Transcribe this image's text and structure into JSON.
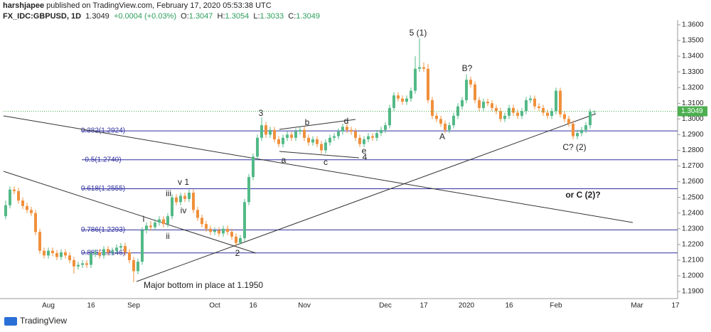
{
  "header": {
    "author": "harshjapee",
    "published": "published on TradingView.com, February 17, 2020 05:53:38 UTC",
    "symbol": "FX_IDC:GBPUSD, 1D",
    "last": "1.3049",
    "change": "+0.0004 (+0.03%)",
    "open_label": "O:",
    "open": "1.3047",
    "high_label": "H:",
    "high": "1.3054",
    "low_label": "L:",
    "low": "1.3033",
    "close_label": "C:",
    "close": "1.3049"
  },
  "footer": {
    "brand": "TradingView"
  },
  "chart_data": {
    "type": "candlestick",
    "categories": [
      null,
      null,
      null,
      null,
      null,
      null,
      null,
      null,
      null,
      null,
      "Aug",
      null,
      null,
      null,
      null,
      null,
      null,
      null,
      null,
      null,
      "16",
      null,
      null,
      null,
      null,
      null,
      null,
      null,
      null,
      null,
      "Sep",
      null,
      null,
      null,
      null,
      null,
      null,
      null,
      null,
      null,
      null,
      null,
      null,
      null,
      null,
      null,
      null,
      null,
      null,
      "Oct",
      null,
      null,
      null,
      null,
      null,
      null,
      null,
      null,
      "16",
      null,
      null,
      null,
      null,
      null,
      null,
      null,
      null,
      null,
      null,
      null,
      "Nov",
      null,
      null,
      null,
      null,
      null,
      null,
      null,
      null,
      null,
      null,
      null,
      null,
      null,
      null,
      null,
      null,
      null,
      null,
      "Dec",
      null,
      null,
      null,
      null,
      null,
      null,
      null,
      null,
      "17",
      null,
      null,
      null,
      null,
      null,
      null,
      null,
      null,
      null,
      "2020",
      null,
      null,
      null,
      null,
      null,
      null,
      null,
      null,
      null,
      "16",
      null,
      null,
      null,
      null,
      null,
      null,
      null,
      null,
      null,
      null,
      "Feb",
      null,
      null,
      null,
      null,
      null,
      null,
      null,
      null,
      null,
      null,
      null,
      null,
      null,
      null,
      null,
      null,
      null,
      null,
      "Mar",
      null,
      null,
      null,
      null,
      null,
      null,
      null,
      null,
      "17"
    ],
    "open": [
      1.238,
      1.245,
      1.255,
      1.254,
      1.248,
      1.2445,
      1.242,
      1.24,
      1.228,
      1.216,
      1.213,
      1.216,
      1.2145,
      1.212,
      1.215,
      1.213,
      1.21,
      1.206,
      1.207,
      1.208,
      1.207,
      1.214,
      1.215,
      1.213,
      1.217,
      1.215,
      1.216,
      1.218,
      1.219,
      1.215,
      1.21,
      1.203,
      1.209,
      1.229,
      1.232,
      1.231,
      1.234,
      1.236,
      1.233,
      1.238,
      1.25,
      1.247,
      1.251,
      1.249,
      1.253,
      1.242,
      1.237,
      1.233,
      1.23,
      1.228,
      1.229,
      1.227,
      1.23,
      1.228,
      1.225,
      1.221,
      1.224,
      1.247,
      1.263,
      1.276,
      1.288,
      1.296,
      1.29,
      1.293,
      1.287,
      1.284,
      1.288,
      1.29,
      1.288,
      1.292,
      1.293,
      1.288,
      1.285,
      1.287,
      1.284,
      1.28,
      1.285,
      1.288,
      1.289,
      1.292,
      1.295,
      1.293,
      1.292,
      1.288,
      1.284,
      1.287,
      1.289,
      1.288,
      1.291,
      1.293,
      1.296,
      1.307,
      1.315,
      1.313,
      1.311,
      1.313,
      1.318,
      1.332,
      1.333,
      1.332,
      1.312,
      1.302,
      1.3,
      1.297,
      1.293,
      1.296,
      1.302,
      1.308,
      1.312,
      1.325,
      1.322,
      1.312,
      1.307,
      1.311,
      1.31,
      1.307,
      1.305,
      1.3,
      1.302,
      1.307,
      1.304,
      1.302,
      1.305,
      1.312,
      1.313,
      1.308,
      1.307,
      1.304,
      1.302,
      1.305,
      1.318,
      1.303,
      1.3,
      1.297,
      1.289,
      1.291,
      1.293,
      1.296,
      1.3047,
      null,
      null,
      null,
      null,
      null,
      null,
      null,
      null,
      null,
      null,
      null,
      null,
      null,
      null,
      null,
      null,
      null,
      null,
      null
    ],
    "high": [
      1.248,
      1.257,
      1.257,
      1.256,
      1.25,
      1.2465,
      1.244,
      1.242,
      1.23,
      1.218,
      1.218,
      1.218,
      1.2165,
      1.217,
      1.217,
      1.215,
      1.212,
      1.209,
      1.21,
      1.21,
      1.216,
      1.217,
      1.217,
      1.219,
      1.219,
      1.218,
      1.22,
      1.221,
      1.221,
      1.217,
      1.212,
      1.211,
      1.231,
      1.234,
      1.235,
      1.236,
      1.238,
      1.238,
      1.24,
      1.252,
      1.252,
      1.253,
      1.253,
      1.255,
      1.255,
      1.244,
      1.239,
      1.235,
      1.232,
      1.231,
      1.231,
      1.232,
      1.232,
      1.23,
      1.227,
      1.226,
      1.249,
      1.265,
      1.278,
      1.29,
      1.301,
      1.298,
      1.295,
      1.295,
      1.289,
      1.29,
      1.292,
      1.292,
      1.294,
      1.295,
      1.295,
      1.29,
      1.289,
      1.289,
      1.286,
      1.287,
      1.29,
      1.291,
      1.294,
      1.297,
      1.297,
      1.295,
      1.294,
      1.29,
      1.289,
      1.291,
      1.291,
      1.293,
      1.295,
      1.298,
      1.309,
      1.317,
      1.317,
      1.315,
      1.315,
      1.32,
      1.34,
      1.3514,
      1.336,
      1.335,
      1.314,
      1.304,
      1.302,
      1.299,
      1.298,
      1.304,
      1.31,
      1.314,
      1.3285,
      1.327,
      1.324,
      1.314,
      1.313,
      1.313,
      1.312,
      1.309,
      1.307,
      1.304,
      1.309,
      1.309,
      1.306,
      1.307,
      1.314,
      1.315,
      1.315,
      1.31,
      1.309,
      1.306,
      1.307,
      1.32,
      1.32,
      1.305,
      1.302,
      1.299,
      1.293,
      1.295,
      1.298,
      1.3065,
      1.3054,
      null,
      null,
      null,
      null,
      null,
      null,
      null,
      null,
      null,
      null,
      null,
      null,
      null,
      null,
      null,
      null,
      null,
      null,
      null
    ],
    "low": [
      1.236,
      1.243,
      1.252,
      1.246,
      1.2425,
      1.24,
      1.238,
      1.226,
      1.214,
      1.211,
      1.211,
      1.2125,
      1.21,
      1.21,
      1.211,
      1.208,
      1.2015,
      1.204,
      1.205,
      1.205,
      1.205,
      1.212,
      1.211,
      1.211,
      1.213,
      1.213,
      1.214,
      1.216,
      1.213,
      1.208,
      1.1959,
      1.201,
      1.207,
      1.227,
      1.229,
      1.229,
      1.232,
      1.231,
      1.231,
      1.236,
      1.245,
      1.245,
      1.247,
      1.247,
      1.24,
      1.235,
      1.231,
      1.228,
      1.226,
      1.226,
      1.225,
      1.225,
      1.226,
      1.223,
      1.219,
      1.22,
      1.222,
      1.245,
      1.261,
      1.274,
      1.286,
      1.288,
      1.288,
      1.285,
      1.282,
      1.282,
      1.286,
      1.286,
      1.286,
      1.29,
      1.286,
      1.283,
      1.283,
      1.282,
      1.278,
      1.278,
      1.283,
      1.286,
      1.287,
      1.29,
      1.291,
      1.29,
      1.286,
      1.282,
      1.282,
      1.285,
      1.286,
      1.286,
      1.289,
      1.291,
      1.294,
      1.305,
      1.311,
      1.309,
      1.309,
      1.311,
      1.316,
      1.33,
      1.33,
      1.31,
      1.3,
      1.298,
      1.295,
      1.291,
      1.291,
      1.294,
      1.3,
      1.306,
      1.31,
      1.32,
      1.31,
      1.305,
      1.305,
      1.308,
      1.305,
      1.303,
      1.298,
      1.298,
      1.3,
      1.302,
      1.3,
      1.3,
      1.303,
      1.31,
      1.306,
      1.305,
      1.302,
      1.3,
      1.3,
      1.303,
      1.301,
      1.298,
      1.295,
      1.287,
      1.287,
      1.289,
      1.291,
      1.294,
      1.3033,
      null,
      null,
      null,
      null,
      null,
      null,
      null,
      null,
      null,
      null,
      null,
      null,
      null,
      null,
      null,
      null,
      null,
      null,
      null
    ],
    "close": [
      1.245,
      1.255,
      1.254,
      1.248,
      1.2445,
      1.242,
      1.24,
      1.228,
      1.216,
      1.213,
      1.216,
      1.2145,
      1.212,
      1.215,
      1.213,
      1.21,
      1.206,
      1.207,
      1.208,
      1.207,
      1.214,
      1.215,
      1.213,
      1.217,
      1.215,
      1.216,
      1.218,
      1.219,
      1.215,
      1.21,
      1.203,
      1.209,
      1.229,
      1.232,
      1.231,
      1.234,
      1.236,
      1.233,
      1.238,
      1.25,
      1.247,
      1.251,
      1.249,
      1.253,
      1.242,
      1.237,
      1.233,
      1.23,
      1.228,
      1.229,
      1.227,
      1.23,
      1.228,
      1.225,
      1.221,
      1.224,
      1.247,
      1.263,
      1.276,
      1.288,
      1.296,
      1.29,
      1.293,
      1.287,
      1.284,
      1.288,
      1.29,
      1.288,
      1.292,
      1.293,
      1.288,
      1.285,
      1.287,
      1.284,
      1.28,
      1.285,
      1.288,
      1.289,
      1.292,
      1.295,
      1.293,
      1.292,
      1.288,
      1.284,
      1.287,
      1.289,
      1.288,
      1.291,
      1.293,
      1.296,
      1.307,
      1.315,
      1.313,
      1.311,
      1.313,
      1.318,
      1.332,
      1.333,
      1.332,
      1.312,
      1.302,
      1.3,
      1.297,
      1.293,
      1.296,
      1.302,
      1.308,
      1.312,
      1.325,
      1.322,
      1.312,
      1.307,
      1.311,
      1.31,
      1.307,
      1.305,
      1.3,
      1.302,
      1.307,
      1.304,
      1.302,
      1.305,
      1.312,
      1.313,
      1.308,
      1.307,
      1.304,
      1.302,
      1.305,
      1.318,
      1.303,
      1.3,
      1.297,
      1.289,
      1.291,
      1.293,
      1.296,
      1.3047,
      1.3049,
      null,
      null,
      null,
      null,
      null,
      null,
      null,
      null,
      null,
      null,
      null,
      null,
      null,
      null,
      null,
      null,
      null,
      null,
      null
    ],
    "up_color": "#53b987",
    "down_color": "#f0903c",
    "last_price_color": "#4caf50",
    "fib_color": "#2f2fa0",
    "ylim": [
      1.1855,
      1.3645
    ],
    "yticks": [
      {
        "value": 1.19,
        "label": "1.1900"
      },
      {
        "value": 1.2,
        "label": "1.2000"
      },
      {
        "value": 1.21,
        "label": "1.2100"
      },
      {
        "value": 1.22,
        "label": "1.2200"
      },
      {
        "value": 1.23,
        "label": "1.2300"
      },
      {
        "value": 1.24,
        "label": "1.2400"
      },
      {
        "value": 1.25,
        "label": "1.2500"
      },
      {
        "value": 1.26,
        "label": "1.2600"
      },
      {
        "value": 1.27,
        "label": "1.2700"
      },
      {
        "value": 1.28,
        "label": "1.2800"
      },
      {
        "value": 1.29,
        "label": "1.2900"
      },
      {
        "value": 1.3,
        "label": "1.3000"
      },
      {
        "value": 1.31,
        "label": "1.3100"
      },
      {
        "value": 1.32,
        "label": "1.3200"
      },
      {
        "value": 1.33,
        "label": "1.3300"
      },
      {
        "value": 1.34,
        "label": "1.3400"
      },
      {
        "value": 1.35,
        "label": "1.3500"
      },
      {
        "value": 1.36,
        "label": "1.3600"
      }
    ],
    "grid": false,
    "fib_levels": [
      {
        "value": 1.2924,
        "label": "0.382(1.2924)"
      },
      {
        "value": 1.274,
        "label": "0.5(1.2740)"
      },
      {
        "value": 1.2555,
        "label": "0.618(1.2555)"
      },
      {
        "value": 1.2293,
        "label": "0.786(1.2293)"
      },
      {
        "value": 1.2146,
        "label": "0.886(1.2146)"
      }
    ],
    "annotations": [
      "5 (1)",
      "B?",
      "3",
      "b",
      "d",
      "a",
      "c",
      "e",
      "4",
      "A",
      "C? (2)",
      "or C (2)?",
      "v 1",
      "iii",
      "iv",
      "i",
      "ii",
      "2",
      "Major bottom in place at 1.1950"
    ]
  }
}
